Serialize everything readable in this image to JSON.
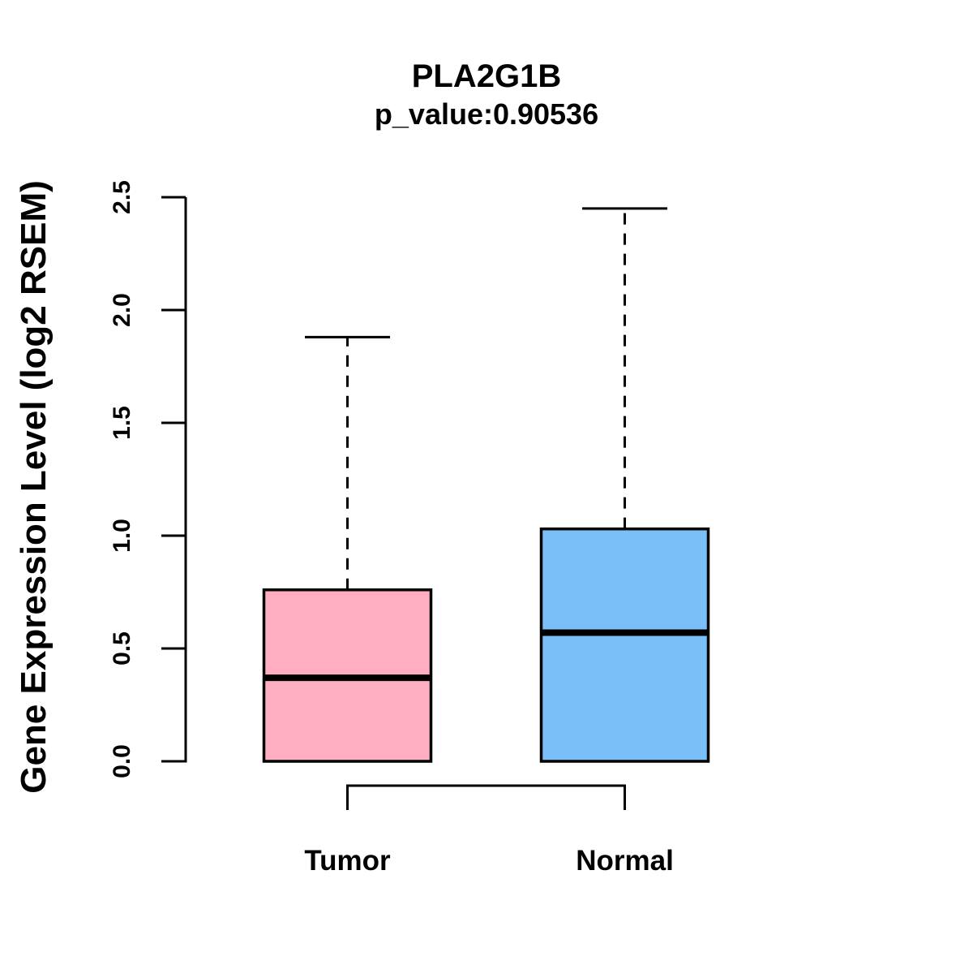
{
  "figure": {
    "title": "PLA2G1B",
    "subtitle": "p_value:0.90536"
  },
  "chart_data": {
    "type": "boxplot",
    "title": "PLA2G1B",
    "subtitle": "p_value:0.90536",
    "xlabel": "",
    "ylabel": "Gene Expression Level (log2 RSEM)",
    "ylim": [
      0.0,
      2.5
    ],
    "ytick_values": [
      0.0,
      0.5,
      1.0,
      1.5,
      2.0,
      2.5
    ],
    "ytick_labels": [
      "0.0",
      "0.5",
      "1.0",
      "1.5",
      "2.0",
      "2.5"
    ],
    "grid": false,
    "legend": "none",
    "categories": [
      "Tumor",
      "Normal"
    ],
    "groups": [
      {
        "label": "Tumor",
        "color": "#FFAEC1",
        "whisker_low": 0.0,
        "q1": 0.0,
        "median": 0.37,
        "q3": 0.76,
        "whisker_high": 1.88
      },
      {
        "label": "Normal",
        "color": "#7ABFF8",
        "whisker_low": 0.0,
        "q1": 0.0,
        "median": 0.57,
        "q3": 1.03,
        "whisker_high": 2.45
      }
    ],
    "colors": {
      "axis": "#000000",
      "text": "#000000",
      "background": "#FFFFFF"
    },
    "style": {
      "whisker_line": "dashed",
      "box_border": "solid black"
    }
  }
}
